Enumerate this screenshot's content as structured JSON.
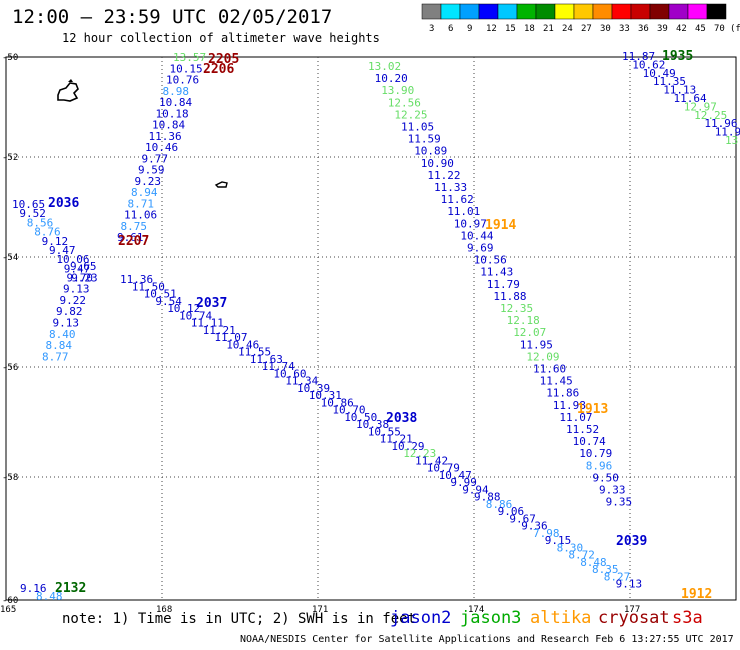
{
  "header": {
    "title": "12:00 – 23:59 UTC 02/05/2017",
    "subtitle": "12 hour collection of altimeter wave heights"
  },
  "legend": {
    "unit": "(ft)",
    "labels": [
      "3",
      "6",
      "9",
      "12",
      "15",
      "18",
      "21",
      "24",
      "27",
      "30",
      "33",
      "36",
      "39",
      "42",
      "45",
      "70"
    ],
    "colors": [
      "#808080",
      "#00e5ff",
      "#00a0ff",
      "#0000ff",
      "#00c8ff",
      "#00b400",
      "#008c00",
      "#ffff00",
      "#ffc800",
      "#ff8c00",
      "#ff0000",
      "#c80000",
      "#800000",
      "#a000c8",
      "#ff00ff",
      "#000000"
    ]
  },
  "axes": {
    "lat_labels": [
      "-50",
      "-52",
      "-54",
      "-56",
      "-58",
      "-60"
    ],
    "lon_labels": [
      "165",
      "168",
      "171",
      "174",
      "177"
    ]
  },
  "colors": {
    "jason2": "#0000cc",
    "jason3": "#00aa00",
    "altika": "#ff9900",
    "cryosat": "#990000",
    "s3a": "#cc0000",
    "cyan": "#3399ff",
    "lightgreen": "#66dd66",
    "darkgreen": "#006600"
  },
  "footer": {
    "note": "note: 1) Time is in UTC; 2) SWH is in feet",
    "satellites": [
      "jason2",
      "jason3",
      "altika",
      "cryosat",
      "s3a"
    ],
    "credit": "NOAA/NESDIS Center for Satellite Applications and Research   Feb  6 13:27:55 UTC 2017"
  },
  "time_labels": [
    {
      "text": "2205",
      "c": "cryosat"
    },
    {
      "text": "2206",
      "c": "cryosat"
    },
    {
      "text": "2036",
      "c": "jason2"
    },
    {
      "text": "2207",
      "c": "cryosat"
    },
    {
      "text": "2037",
      "c": "jason2"
    },
    {
      "text": "2038",
      "c": "jason2"
    },
    {
      "text": "1914",
      "c": "altika"
    },
    {
      "text": "1913",
      "c": "altika"
    },
    {
      "text": "2039",
      "c": "jason2"
    },
    {
      "text": "1912",
      "c": "altika"
    },
    {
      "text": "1935",
      "c": "darkgreen"
    },
    {
      "text": "2132",
      "c": "darkgreen"
    }
  ],
  "tracks": {
    "cryosat_north": [
      {
        "v": "13.57",
        "c": "lightgreen"
      },
      {
        "v": "10.15",
        "c": "jason2"
      },
      {
        "v": "10.76",
        "c": "jason2"
      },
      {
        "v": "8.98",
        "c": "cyan"
      },
      {
        "v": "10.84",
        "c": "jason2"
      },
      {
        "v": "10.18",
        "c": "jason2"
      },
      {
        "v": "10.84",
        "c": "jason2"
      },
      {
        "v": "11.36",
        "c": "jason2"
      },
      {
        "v": "10.46",
        "c": "jason2"
      },
      {
        "v": "9.77",
        "c": "jason2"
      },
      {
        "v": "9.59",
        "c": "jason2"
      },
      {
        "v": "9.23",
        "c": "jason2"
      },
      {
        "v": "8.94",
        "c": "cyan"
      },
      {
        "v": "8.71",
        "c": "cyan"
      },
      {
        "v": "11.06",
        "c": "jason2"
      },
      {
        "v": "8.75",
        "c": "cyan"
      },
      {
        "v": "9.61",
        "c": "jason2"
      }
    ],
    "jason2_west": [
      {
        "v": "10.65",
        "c": "jason2"
      },
      {
        "v": "9.52",
        "c": "jason2"
      },
      {
        "v": "8.56",
        "c": "cyan"
      },
      {
        "v": "8.76",
        "c": "cyan"
      },
      {
        "v": "9.12",
        "c": "jason2"
      },
      {
        "v": "9.47",
        "c": "jason2"
      },
      {
        "v": "10.06",
        "c": "jason2"
      },
      {
        "v": "9.47",
        "c": "jason2"
      },
      {
        "v": "9.23",
        "c": "jason2"
      }
    ],
    "cryosat_south": [
      {
        "v": "9.65",
        "c": "jason2"
      },
      {
        "v": "9.70",
        "c": "jason2"
      },
      {
        "v": "9.13",
        "c": "jason2"
      },
      {
        "v": "9.22",
        "c": "jason2"
      },
      {
        "v": "9.82",
        "c": "jason2"
      },
      {
        "v": "9.13",
        "c": "jason2"
      },
      {
        "v": "8.40",
        "c": "cyan"
      },
      {
        "v": "8.84",
        "c": "cyan"
      },
      {
        "v": "8.77",
        "c": "cyan"
      }
    ],
    "jason2_diag": [
      {
        "v": "11.36",
        "c": "jason2"
      },
      {
        "v": "11.50",
        "c": "jason2"
      },
      {
        "v": "10.51",
        "c": "jason2"
      },
      {
        "v": "9.54",
        "c": "jason2"
      },
      {
        "v": "10.12",
        "c": "jason2"
      },
      {
        "v": "10.74",
        "c": "jason2"
      },
      {
        "v": "11.11",
        "c": "jason2"
      },
      {
        "v": "11.21",
        "c": "jason2"
      },
      {
        "v": "11.07",
        "c": "jason2"
      },
      {
        "v": "10.46",
        "c": "jason2"
      },
      {
        "v": "11.55",
        "c": "jason2"
      },
      {
        "v": "11.63",
        "c": "jason2"
      },
      {
        "v": "11.74",
        "c": "jason2"
      },
      {
        "v": "10.60",
        "c": "jason2"
      },
      {
        "v": "11.34",
        "c": "jason2"
      },
      {
        "v": "10.39",
        "c": "jason2"
      },
      {
        "v": "10.31",
        "c": "jason2"
      },
      {
        "v": "10.86",
        "c": "jason2"
      },
      {
        "v": "10.70",
        "c": "jason2"
      },
      {
        "v": "10.50",
        "c": "jason2"
      },
      {
        "v": "10.38",
        "c": "jason2"
      },
      {
        "v": "10.55",
        "c": "jason2"
      },
      {
        "v": "11.21",
        "c": "jason2"
      },
      {
        "v": "10.29",
        "c": "jason2"
      },
      {
        "v": "12.23",
        "c": "lightgreen"
      },
      {
        "v": "11.42",
        "c": "jason2"
      },
      {
        "v": "10.79",
        "c": "jason2"
      },
      {
        "v": "10.47",
        "c": "jason2"
      },
      {
        "v": "9.99",
        "c": "jason2"
      },
      {
        "v": "9.94",
        "c": "jason2"
      },
      {
        "v": "9.88",
        "c": "jason2"
      },
      {
        "v": "8.86",
        "c": "cyan"
      },
      {
        "v": "9.06",
        "c": "jason2"
      },
      {
        "v": "9.67",
        "c": "jason2"
      },
      {
        "v": "9.36",
        "c": "jason2"
      },
      {
        "v": "7.98",
        "c": "cyan"
      },
      {
        "v": "9.15",
        "c": "jason2"
      },
      {
        "v": "8.30",
        "c": "cyan"
      },
      {
        "v": "8.72",
        "c": "cyan"
      },
      {
        "v": "8.48",
        "c": "cyan"
      },
      {
        "v": "8.35",
        "c": "cyan"
      },
      {
        "v": "8.27",
        "c": "cyan"
      },
      {
        "v": "9.13",
        "c": "jason2"
      }
    ],
    "altika_mid": [
      {
        "v": "13.02",
        "c": "lightgreen"
      },
      {
        "v": "10.20",
        "c": "jason2"
      },
      {
        "v": "13.90",
        "c": "lightgreen"
      },
      {
        "v": "12.56",
        "c": "lightgreen"
      },
      {
        "v": "12.25",
        "c": "lightgreen"
      },
      {
        "v": "11.05",
        "c": "jason2"
      },
      {
        "v": "11.59",
        "c": "jason2"
      },
      {
        "v": "10.89",
        "c": "jason2"
      },
      {
        "v": "10.90",
        "c": "jason2"
      },
      {
        "v": "11.22",
        "c": "jason2"
      },
      {
        "v": "11.33",
        "c": "jason2"
      },
      {
        "v": "11.62",
        "c": "jason2"
      },
      {
        "v": "11.01",
        "c": "jason2"
      },
      {
        "v": "10.97",
        "c": "jason2"
      },
      {
        "v": "10.44",
        "c": "jason2"
      },
      {
        "v": "9.69",
        "c": "jason2"
      },
      {
        "v": "10.56",
        "c": "jason2"
      },
      {
        "v": "11.43",
        "c": "jason2"
      },
      {
        "v": "11.79",
        "c": "jason2"
      },
      {
        "v": "11.88",
        "c": "jason2"
      },
      {
        "v": "12.35",
        "c": "lightgreen"
      },
      {
        "v": "12.18",
        "c": "lightgreen"
      },
      {
        "v": "12.07",
        "c": "lightgreen"
      },
      {
        "v": "11.95",
        "c": "jason2"
      },
      {
        "v": "12.09",
        "c": "lightgreen"
      },
      {
        "v": "11.60",
        "c": "jason2"
      },
      {
        "v": "11.45",
        "c": "jason2"
      },
      {
        "v": "11.86",
        "c": "jason2"
      },
      {
        "v": "11.98",
        "c": "jason2"
      },
      {
        "v": "11.07",
        "c": "jason2"
      },
      {
        "v": "11.52",
        "c": "jason2"
      },
      {
        "v": "10.74",
        "c": "jason2"
      },
      {
        "v": "10.79",
        "c": "jason2"
      },
      {
        "v": "8.96",
        "c": "cyan"
      },
      {
        "v": "9.50",
        "c": "jason2"
      },
      {
        "v": "9.33",
        "c": "jason2"
      },
      {
        "v": "9.35",
        "c": "jason2"
      }
    ],
    "jason3_ne": [
      {
        "v": "11.87",
        "c": "jason2"
      },
      {
        "v": "10.62",
        "c": "jason2"
      },
      {
        "v": "10.49",
        "c": "jason2"
      },
      {
        "v": "11.35",
        "c": "jason2"
      },
      {
        "v": "11.13",
        "c": "jason2"
      },
      {
        "v": "11.64",
        "c": "jason2"
      },
      {
        "v": "12.97",
        "c": "lightgreen"
      },
      {
        "v": "12.25",
        "c": "lightgreen"
      },
      {
        "v": "11.96",
        "c": "jason2"
      },
      {
        "v": "11.9",
        "c": "jason2"
      },
      {
        "v": "13",
        "c": "lightgreen"
      }
    ],
    "sw_corner": [
      {
        "v": "9.16",
        "c": "jason2"
      },
      {
        "v": "8.48",
        "c": "cyan"
      }
    ]
  }
}
